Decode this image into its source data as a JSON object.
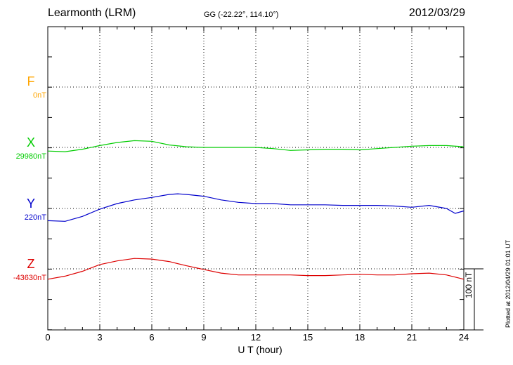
{
  "header": {
    "station": "Learmonth (LRM)",
    "coords": "GG (-22.22°, 114.10°)",
    "date": "2012/03/29"
  },
  "xaxis": {
    "label": "U T (hour)",
    "ticks": [
      "0",
      "3",
      "6",
      "9",
      "12",
      "15",
      "18",
      "21",
      "24"
    ]
  },
  "scale_label": "100 nT",
  "plotted_note": "Plotted at 2012/04/29 01:01 UT",
  "chart_data": {
    "type": "line",
    "title": "Learmonth (LRM)",
    "xlabel": "U T (hour)",
    "xlim": [
      0,
      24
    ],
    "grid": true,
    "series": [
      {
        "name": "F",
        "baseline_label": "0nT",
        "color": "#ffa500",
        "points": []
      },
      {
        "name": "X",
        "baseline_label": "29980nT",
        "color": "#00cc00",
        "points": [
          [
            0,
            -6
          ],
          [
            1,
            -7
          ],
          [
            2,
            -3
          ],
          [
            3,
            3
          ],
          [
            4,
            8
          ],
          [
            5,
            11
          ],
          [
            6,
            10
          ],
          [
            7,
            4
          ],
          [
            8,
            1
          ],
          [
            9,
            0
          ],
          [
            10,
            0
          ],
          [
            11,
            0
          ],
          [
            12,
            0
          ],
          [
            13,
            -2
          ],
          [
            14,
            -5
          ],
          [
            15,
            -4
          ],
          [
            16,
            -3
          ],
          [
            17,
            -3
          ],
          [
            18,
            -4
          ],
          [
            19,
            -2
          ],
          [
            20,
            0
          ],
          [
            21,
            2
          ],
          [
            22,
            3
          ],
          [
            23,
            3
          ],
          [
            24,
            1
          ]
        ]
      },
      {
        "name": "Y",
        "baseline_label": "220nT",
        "color": "#0000cc",
        "points": [
          [
            0,
            -20
          ],
          [
            1,
            -21
          ],
          [
            2,
            -13
          ],
          [
            3,
            -1
          ],
          [
            4,
            8
          ],
          [
            5,
            14
          ],
          [
            6,
            18
          ],
          [
            7,
            23
          ],
          [
            7.5,
            24
          ],
          [
            8,
            23
          ],
          [
            9,
            20
          ],
          [
            10,
            14
          ],
          [
            11,
            10
          ],
          [
            12,
            8
          ],
          [
            13,
            8
          ],
          [
            14,
            6
          ],
          [
            15,
            6
          ],
          [
            16,
            6
          ],
          [
            17,
            5
          ],
          [
            18,
            5
          ],
          [
            19,
            5
          ],
          [
            20,
            4
          ],
          [
            21,
            2
          ],
          [
            22,
            5
          ],
          [
            23,
            0
          ],
          [
            23.5,
            -8
          ],
          [
            24,
            -4
          ]
        ]
      },
      {
        "name": "Z",
        "baseline_label": "-43630nT",
        "color": "#dd0000",
        "points": [
          [
            0,
            -17
          ],
          [
            1,
            -12
          ],
          [
            2,
            -4
          ],
          [
            3,
            7
          ],
          [
            4,
            13
          ],
          [
            5,
            17
          ],
          [
            6,
            16
          ],
          [
            7,
            12
          ],
          [
            8,
            5
          ],
          [
            9,
            -1
          ],
          [
            10,
            -7
          ],
          [
            11,
            -10
          ],
          [
            12,
            -10
          ],
          [
            13,
            -10
          ],
          [
            14,
            -10
          ],
          [
            15,
            -11
          ],
          [
            16,
            -11
          ],
          [
            17,
            -10
          ],
          [
            18,
            -9
          ],
          [
            19,
            -10
          ],
          [
            20,
            -10
          ],
          [
            21,
            -8
          ],
          [
            22,
            -7
          ],
          [
            23,
            -10
          ],
          [
            24,
            -17
          ]
        ]
      }
    ]
  }
}
